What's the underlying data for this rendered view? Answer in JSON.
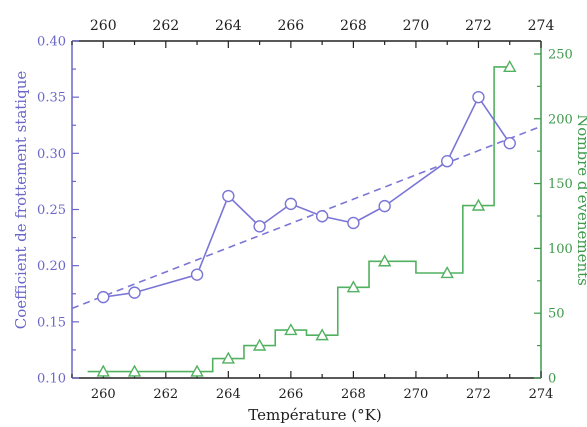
{
  "chart_data": {
    "type": "line",
    "xlabel": "Température (°K)",
    "ylabel_left": "Coefficient de frottement statique",
    "ylabel_right": "Nombre d'événements",
    "x_range": [
      259,
      274
    ],
    "x_ticks": [
      260,
      262,
      264,
      266,
      268,
      270,
      272,
      274
    ],
    "x_top_ticks": [
      260,
      262,
      264,
      266,
      268,
      270,
      272,
      274
    ],
    "y_left_range": [
      0.1,
      0.4
    ],
    "y_left_ticks": [
      0.1,
      0.15,
      0.2,
      0.25,
      0.3,
      0.35,
      0.4
    ],
    "y_right_range": [
      0,
      260
    ],
    "y_right_ticks": [
      0,
      50,
      100,
      150,
      200,
      250
    ],
    "grid": false,
    "colors": {
      "friction": "#7b76d6",
      "events": "#52b160",
      "left_axis": "#6b67c9",
      "right_axis": "#3f9a4c"
    },
    "series": [
      {
        "axis": "left",
        "marker": "circle",
        "x": [
          260,
          261,
          263,
          264,
          265,
          266,
          267,
          268,
          269,
          271,
          272,
          273
        ],
        "y": [
          0.172,
          0.176,
          0.192,
          0.262,
          0.235,
          0.255,
          0.244,
          0.238,
          0.253,
          0.293,
          0.35,
          0.309
        ]
      },
      {
        "axis": "left",
        "style": "dashed",
        "x": [
          259,
          274
        ],
        "y": [
          0.162,
          0.324
        ]
      },
      {
        "axis": "right",
        "marker": "triangle",
        "style": "step",
        "x": [
          260,
          261,
          263,
          264,
          265,
          266,
          267,
          268,
          269,
          271,
          272,
          273
        ],
        "y": [
          5,
          5,
          5,
          15,
          25,
          37,
          33,
          70,
          90,
          81,
          133,
          240
        ]
      }
    ]
  }
}
